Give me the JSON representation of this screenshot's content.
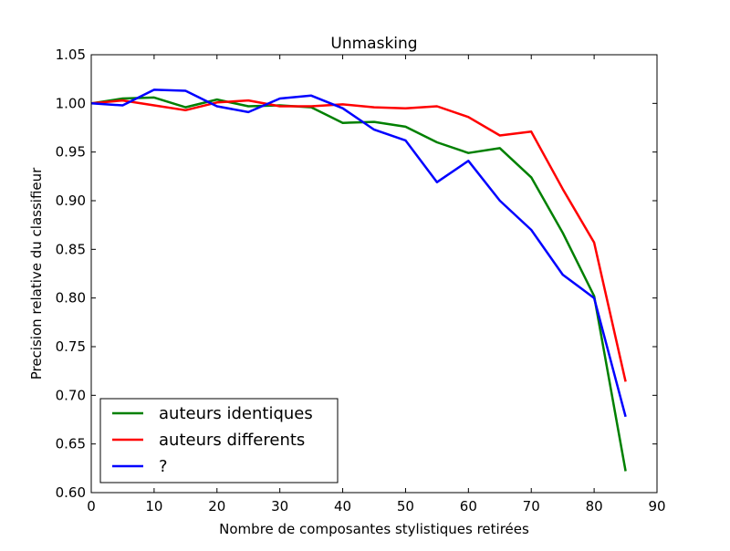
{
  "chart_data": {
    "type": "line",
    "title": "Unmasking",
    "xlabel": "Nombre de composantes stylistiques retirées",
    "ylabel": "Precision relative du classifieur",
    "xlim": [
      0,
      90
    ],
    "ylim": [
      0.6,
      1.05
    ],
    "xticks": [
      0,
      10,
      20,
      30,
      40,
      50,
      60,
      70,
      80,
      90
    ],
    "yticks": [
      0.6,
      0.65,
      0.7,
      0.75,
      0.8,
      0.85,
      0.9,
      0.95,
      1.0,
      1.05
    ],
    "xtick_labels": [
      "0",
      "10",
      "20",
      "30",
      "40",
      "50",
      "60",
      "70",
      "80",
      "90"
    ],
    "ytick_labels": [
      "0.60",
      "0.65",
      "0.70",
      "0.75",
      "0.80",
      "0.85",
      "0.90",
      "0.95",
      "1.00",
      "1.05"
    ],
    "grid": false,
    "legend_position": "lower-left",
    "x": [
      0,
      5,
      10,
      15,
      20,
      25,
      30,
      35,
      40,
      45,
      50,
      55,
      60,
      65,
      70,
      75,
      80,
      85
    ],
    "series": [
      {
        "name": "auteurs identiques",
        "color": "#008000",
        "values": [
          1.0,
          1.005,
          1.006,
          0.996,
          1.004,
          0.997,
          0.998,
          0.996,
          0.98,
          0.981,
          0.976,
          0.96,
          0.949,
          0.954,
          0.924,
          0.867,
          0.802,
          0.622
        ]
      },
      {
        "name": "auteurs differents",
        "color": "#ff0000",
        "values": [
          1.0,
          1.003,
          0.998,
          0.993,
          1.001,
          1.003,
          0.997,
          0.997,
          0.999,
          0.996,
          0.995,
          0.997,
          0.986,
          0.967,
          0.971,
          0.912,
          0.857,
          0.714
        ]
      },
      {
        "name": "?",
        "color": "#0000ff",
        "values": [
          1.0,
          0.998,
          1.014,
          1.013,
          0.997,
          0.991,
          1.005,
          1.008,
          0.995,
          0.973,
          0.962,
          0.919,
          0.941,
          0.9,
          0.87,
          0.824,
          0.8,
          0.678
        ]
      }
    ]
  }
}
